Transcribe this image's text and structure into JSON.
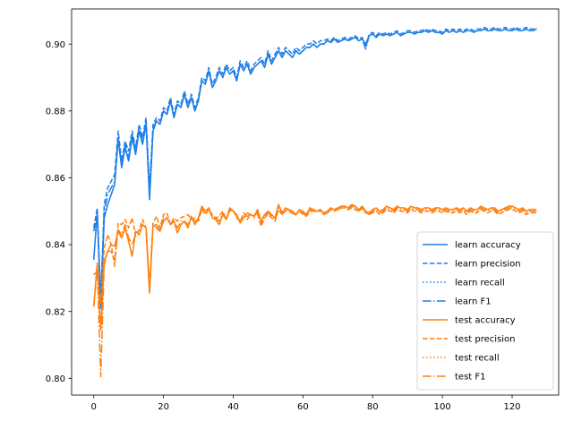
{
  "chart_data": {
    "type": "line",
    "title": "",
    "xlabel": "",
    "ylabel": "",
    "xlim": [
      -6.35,
      133.35
    ],
    "ylim": [
      0.795,
      0.9105
    ],
    "xticks": [
      0,
      20,
      40,
      60,
      80,
      100,
      120
    ],
    "yticks": [
      0.8,
      0.82,
      0.84,
      0.86,
      0.88,
      0.9
    ],
    "ytick_labels": [
      "0.80",
      "0.82",
      "0.84",
      "0.86",
      "0.88",
      "0.90"
    ],
    "grid": false,
    "legend_position": "lower-right",
    "colors": {
      "learn": "#1f7fe6",
      "test": "#ff7f0e"
    },
    "series": [
      {
        "name": "learn accuracy",
        "group": "learn",
        "style": "solid",
        "values": [
          0.8355,
          0.85,
          0.821,
          0.848,
          0.852,
          0.855,
          0.858,
          0.8715,
          0.863,
          0.869,
          0.865,
          0.872,
          0.867,
          0.874,
          0.87,
          0.876,
          0.8535,
          0.874,
          0.877,
          0.876,
          0.88,
          0.879,
          0.883,
          0.878,
          0.882,
          0.881,
          0.885,
          0.881,
          0.884,
          0.88,
          0.883,
          0.889,
          0.888,
          0.892,
          0.887,
          0.889,
          0.892,
          0.89,
          0.893,
          0.891,
          0.892,
          0.889,
          0.894,
          0.892,
          0.894,
          0.891,
          0.893,
          0.894,
          0.895,
          0.893,
          0.897,
          0.894,
          0.896,
          0.898,
          0.896,
          0.898,
          0.897,
          0.896,
          0.898,
          0.897,
          0.898,
          0.899,
          0.899,
          0.9,
          0.899,
          0.9,
          0.9,
          0.901,
          0.9005,
          0.9015,
          0.9005,
          0.901,
          0.9015,
          0.901,
          0.9015,
          0.902,
          0.901,
          0.9015,
          0.9,
          0.9025,
          0.903,
          0.902,
          0.903,
          0.9025,
          0.903,
          0.9025,
          0.903,
          0.9035,
          0.9025,
          0.903,
          0.9035,
          0.9035,
          0.903,
          0.9035,
          0.9035,
          0.904,
          0.9035,
          0.904,
          0.9035,
          0.9035,
          0.903,
          0.904,
          0.9035,
          0.904,
          0.9035,
          0.904,
          0.9035,
          0.904,
          0.904,
          0.9035,
          0.904,
          0.904,
          0.9045,
          0.904,
          0.904,
          0.9045,
          0.904,
          0.904,
          0.9045,
          0.904,
          0.904,
          0.9045,
          0.904,
          0.904,
          0.9045,
          0.904,
          0.904,
          0.9045
        ]
      },
      {
        "name": "learn precision",
        "group": "learn",
        "style": "dashed",
        "values": [
          0.845,
          0.851,
          0.824,
          0.852,
          0.857,
          0.859,
          0.861,
          0.874,
          0.865,
          0.871,
          0.868,
          0.874,
          0.869,
          0.876,
          0.872,
          0.878,
          0.857,
          0.876,
          0.878,
          0.877,
          0.881,
          0.88,
          0.884,
          0.879,
          0.883,
          0.882,
          0.886,
          0.882,
          0.885,
          0.881,
          0.884,
          0.89,
          0.889,
          0.893,
          0.888,
          0.89,
          0.893,
          0.891,
          0.894,
          0.892,
          0.893,
          0.89,
          0.895,
          0.893,
          0.895,
          0.892,
          0.894,
          0.895,
          0.896,
          0.894,
          0.898,
          0.895,
          0.897,
          0.899,
          0.897,
          0.899,
          0.898,
          0.897,
          0.899,
          0.898,
          0.899,
          0.9,
          0.9,
          0.901,
          0.9,
          0.901,
          0.901,
          0.9015,
          0.901,
          0.902,
          0.901,
          0.9015,
          0.902,
          0.9015,
          0.902,
          0.9025,
          0.9015,
          0.902,
          0.899,
          0.903,
          0.9035,
          0.9025,
          0.9035,
          0.903,
          0.9035,
          0.903,
          0.9035,
          0.904,
          0.903,
          0.9035,
          0.904,
          0.904,
          0.9035,
          0.904,
          0.904,
          0.9045,
          0.904,
          0.9045,
          0.904,
          0.904,
          0.9035,
          0.9045,
          0.904,
          0.9045,
          0.904,
          0.9045,
          0.904,
          0.9045,
          0.9045,
          0.904,
          0.9045,
          0.9045,
          0.905,
          0.9045,
          0.9045,
          0.905,
          0.9045,
          0.9045,
          0.905,
          0.9045,
          0.9045,
          0.905,
          0.9045,
          0.9045,
          0.905,
          0.9045,
          0.9045,
          0.905
        ]
      },
      {
        "name": "learn recall",
        "group": "learn",
        "style": "dotted",
        "values": [
          0.8355,
          0.85,
          0.821,
          0.848,
          0.852,
          0.855,
          0.858,
          0.8715,
          0.863,
          0.869,
          0.865,
          0.872,
          0.867,
          0.874,
          0.87,
          0.876,
          0.8535,
          0.874,
          0.877,
          0.876,
          0.88,
          0.879,
          0.883,
          0.878,
          0.882,
          0.881,
          0.885,
          0.881,
          0.884,
          0.88,
          0.883,
          0.889,
          0.888,
          0.892,
          0.887,
          0.889,
          0.892,
          0.89,
          0.893,
          0.891,
          0.892,
          0.889,
          0.894,
          0.892,
          0.894,
          0.891,
          0.893,
          0.894,
          0.895,
          0.893,
          0.897,
          0.894,
          0.896,
          0.898,
          0.896,
          0.898,
          0.897,
          0.896,
          0.898,
          0.897,
          0.898,
          0.899,
          0.899,
          0.9,
          0.899,
          0.9,
          0.9,
          0.901,
          0.9005,
          0.9015,
          0.9005,
          0.901,
          0.9015,
          0.901,
          0.9015,
          0.902,
          0.901,
          0.9015,
          0.9,
          0.9025,
          0.903,
          0.902,
          0.903,
          0.9025,
          0.903,
          0.9025,
          0.903,
          0.9035,
          0.9025,
          0.903,
          0.9035,
          0.9035,
          0.903,
          0.9035,
          0.9035,
          0.904,
          0.9035,
          0.904,
          0.9035,
          0.9035,
          0.903,
          0.904,
          0.9035,
          0.904,
          0.9035,
          0.904,
          0.9035,
          0.904,
          0.904,
          0.9035,
          0.904,
          0.904,
          0.9045,
          0.904,
          0.904,
          0.9045,
          0.904,
          0.904,
          0.9045,
          0.904,
          0.904,
          0.9045,
          0.904,
          0.904,
          0.9045,
          0.904,
          0.904,
          0.9045
        ]
      },
      {
        "name": "learn F1",
        "group": "learn",
        "style": "dashdot",
        "values": [
          0.844,
          0.849,
          0.823,
          0.85,
          0.855,
          0.857,
          0.859,
          0.872,
          0.864,
          0.87,
          0.866,
          0.873,
          0.868,
          0.875,
          0.871,
          0.877,
          0.855,
          0.875,
          0.877,
          0.876,
          0.88,
          0.879,
          0.883,
          0.878,
          0.882,
          0.881,
          0.885,
          0.881,
          0.884,
          0.88,
          0.883,
          0.889,
          0.888,
          0.892,
          0.887,
          0.889,
          0.892,
          0.89,
          0.893,
          0.891,
          0.892,
          0.889,
          0.894,
          0.892,
          0.894,
          0.891,
          0.893,
          0.894,
          0.895,
          0.893,
          0.897,
          0.894,
          0.896,
          0.898,
          0.896,
          0.898,
          0.897,
          0.896,
          0.898,
          0.897,
          0.898,
          0.899,
          0.899,
          0.9,
          0.899,
          0.9,
          0.9,
          0.901,
          0.9005,
          0.9015,
          0.9005,
          0.901,
          0.9015,
          0.901,
          0.9015,
          0.902,
          0.901,
          0.9015,
          0.8985,
          0.9025,
          0.903,
          0.902,
          0.903,
          0.9025,
          0.903,
          0.9025,
          0.903,
          0.9035,
          0.9025,
          0.903,
          0.9035,
          0.9035,
          0.903,
          0.9035,
          0.9035,
          0.904,
          0.9035,
          0.904,
          0.9035,
          0.9035,
          0.903,
          0.904,
          0.9035,
          0.904,
          0.9035,
          0.904,
          0.9035,
          0.904,
          0.904,
          0.9035,
          0.904,
          0.904,
          0.9045,
          0.904,
          0.904,
          0.9045,
          0.904,
          0.904,
          0.9045,
          0.904,
          0.904,
          0.9045,
          0.904,
          0.904,
          0.9045,
          0.904,
          0.904,
          0.9045
        ]
      },
      {
        "name": "test accuracy",
        "group": "test",
        "style": "solid",
        "values": [
          0.8215,
          0.8345,
          0.8145,
          0.835,
          0.838,
          0.84,
          0.8395,
          0.844,
          0.842,
          0.845,
          0.841,
          0.8365,
          0.844,
          0.843,
          0.846,
          0.845,
          0.8255,
          0.846,
          0.845,
          0.844,
          0.847,
          0.848,
          0.846,
          0.847,
          0.8435,
          0.846,
          0.847,
          0.845,
          0.8485,
          0.846,
          0.848,
          0.8515,
          0.85,
          0.851,
          0.848,
          0.8475,
          0.846,
          0.849,
          0.8475,
          0.851,
          0.85,
          0.849,
          0.8465,
          0.848,
          0.8495,
          0.849,
          0.8485,
          0.8505,
          0.847,
          0.849,
          0.85,
          0.849,
          0.848,
          0.852,
          0.8495,
          0.851,
          0.8505,
          0.85,
          0.849,
          0.8505,
          0.85,
          0.849,
          0.851,
          0.8505,
          0.85,
          0.8505,
          0.8495,
          0.85,
          0.851,
          0.8505,
          0.851,
          0.8515,
          0.8515,
          0.851,
          0.852,
          0.8515,
          0.8505,
          0.8515,
          0.85,
          0.8495,
          0.8505,
          0.851,
          0.85,
          0.8505,
          0.8515,
          0.851,
          0.8505,
          0.8515,
          0.851,
          0.851,
          0.8505,
          0.8515,
          0.851,
          0.851,
          0.8505,
          0.851,
          0.851,
          0.8505,
          0.851,
          0.851,
          0.8505,
          0.851,
          0.8505,
          0.8505,
          0.851,
          0.8505,
          0.851,
          0.85,
          0.851,
          0.8505,
          0.8505,
          0.8515,
          0.851,
          0.8505,
          0.851,
          0.851,
          0.85,
          0.8505,
          0.851,
          0.8515,
          0.8515,
          0.851,
          0.8505,
          0.851,
          0.85,
          0.8505,
          0.8505,
          0.8505
        ]
      },
      {
        "name": "test precision",
        "group": "test",
        "style": "dashed",
        "values": [
          0.831,
          0.832,
          0.8225,
          0.839,
          0.843,
          0.84,
          0.8335,
          0.8465,
          0.846,
          0.8475,
          0.845,
          0.848,
          0.8425,
          0.8445,
          0.8475,
          0.845,
          0.8275,
          0.8465,
          0.8485,
          0.845,
          0.849,
          0.8495,
          0.846,
          0.848,
          0.847,
          0.848,
          0.8485,
          0.849,
          0.8475,
          0.848,
          0.847,
          0.8505,
          0.849,
          0.8505,
          0.849,
          0.848,
          0.8485,
          0.85,
          0.8475,
          0.85,
          0.8505,
          0.848,
          0.847,
          0.8495,
          0.8475,
          0.849,
          0.8485,
          0.849,
          0.8455,
          0.848,
          0.849,
          0.848,
          0.847,
          0.8505,
          0.849,
          0.85,
          0.8505,
          0.849,
          0.849,
          0.85,
          0.849,
          0.8485,
          0.85,
          0.85,
          0.85,
          0.85,
          0.849,
          0.8495,
          0.8505,
          0.85,
          0.8505,
          0.851,
          0.851,
          0.8505,
          0.851,
          0.8505,
          0.85,
          0.851,
          0.8495,
          0.849,
          0.8495,
          0.85,
          0.849,
          0.8495,
          0.8505,
          0.85,
          0.8495,
          0.8505,
          0.85,
          0.85,
          0.8495,
          0.8505,
          0.85,
          0.85,
          0.8495,
          0.85,
          0.85,
          0.8495,
          0.85,
          0.85,
          0.8495,
          0.85,
          0.8495,
          0.8495,
          0.85,
          0.8495,
          0.85,
          0.849,
          0.85,
          0.8495,
          0.8495,
          0.8505,
          0.85,
          0.8495,
          0.85,
          0.85,
          0.849,
          0.8495,
          0.85,
          0.8505,
          0.8505,
          0.85,
          0.8495,
          0.85,
          0.849,
          0.8495,
          0.8495,
          0.8495
        ]
      },
      {
        "name": "test recall",
        "group": "test",
        "style": "dotted",
        "values": [
          0.8215,
          0.8345,
          0.8145,
          0.835,
          0.838,
          0.84,
          0.8395,
          0.844,
          0.842,
          0.845,
          0.841,
          0.8365,
          0.844,
          0.843,
          0.846,
          0.845,
          0.8255,
          0.846,
          0.845,
          0.844,
          0.847,
          0.848,
          0.846,
          0.847,
          0.8435,
          0.846,
          0.847,
          0.845,
          0.8485,
          0.846,
          0.848,
          0.8515,
          0.85,
          0.851,
          0.848,
          0.8475,
          0.846,
          0.849,
          0.8475,
          0.851,
          0.85,
          0.849,
          0.8465,
          0.848,
          0.8495,
          0.849,
          0.8485,
          0.8505,
          0.847,
          0.849,
          0.85,
          0.849,
          0.848,
          0.852,
          0.8495,
          0.851,
          0.8505,
          0.85,
          0.849,
          0.8505,
          0.85,
          0.849,
          0.851,
          0.8505,
          0.85,
          0.8505,
          0.8495,
          0.85,
          0.851,
          0.8505,
          0.851,
          0.8515,
          0.8515,
          0.851,
          0.852,
          0.8515,
          0.8505,
          0.8515,
          0.85,
          0.8495,
          0.8505,
          0.851,
          0.85,
          0.8505,
          0.8515,
          0.851,
          0.8505,
          0.8515,
          0.851,
          0.851,
          0.8505,
          0.8515,
          0.851,
          0.851,
          0.8505,
          0.851,
          0.851,
          0.8505,
          0.851,
          0.851,
          0.8505,
          0.851,
          0.8505,
          0.8505,
          0.851,
          0.8505,
          0.851,
          0.85,
          0.851,
          0.8505,
          0.8505,
          0.8515,
          0.851,
          0.8505,
          0.851,
          0.851,
          0.85,
          0.8505,
          0.851,
          0.8515,
          0.8515,
          0.851,
          0.8505,
          0.851,
          0.85,
          0.8505,
          0.8505,
          0.8505
        ]
      },
      {
        "name": "test F1",
        "group": "test",
        "style": "dashdot",
        "values": [
          0.8215,
          0.833,
          0.8005,
          0.834,
          0.838,
          0.838,
          0.8355,
          0.8445,
          0.843,
          0.846,
          0.842,
          0.84,
          0.843,
          0.843,
          0.846,
          0.845,
          0.8265,
          0.846,
          0.846,
          0.844,
          0.848,
          0.848,
          0.846,
          0.847,
          0.845,
          0.847,
          0.847,
          0.846,
          0.848,
          0.847,
          0.8475,
          0.851,
          0.8495,
          0.851,
          0.8485,
          0.848,
          0.847,
          0.8495,
          0.8475,
          0.8505,
          0.85,
          0.8485,
          0.847,
          0.8485,
          0.8485,
          0.849,
          0.848,
          0.85,
          0.846,
          0.8485,
          0.8495,
          0.8485,
          0.8475,
          0.851,
          0.849,
          0.8505,
          0.85,
          0.8495,
          0.849,
          0.85,
          0.8495,
          0.8485,
          0.8505,
          0.85,
          0.85,
          0.85,
          0.849,
          0.8495,
          0.8505,
          0.85,
          0.8505,
          0.851,
          0.851,
          0.8505,
          0.8515,
          0.851,
          0.85,
          0.851,
          0.8495,
          0.849,
          0.85,
          0.8505,
          0.8495,
          0.85,
          0.851,
          0.8505,
          0.85,
          0.851,
          0.8505,
          0.8505,
          0.85,
          0.851,
          0.8505,
          0.8505,
          0.85,
          0.8505,
          0.8505,
          0.85,
          0.8505,
          0.8505,
          0.85,
          0.8505,
          0.85,
          0.85,
          0.8505,
          0.85,
          0.8505,
          0.8495,
          0.8505,
          0.85,
          0.85,
          0.851,
          0.8505,
          0.85,
          0.8505,
          0.8505,
          0.8495,
          0.85,
          0.8505,
          0.851,
          0.851,
          0.8505,
          0.85,
          0.8505,
          0.8495,
          0.85,
          0.85,
          0.85
        ]
      }
    ]
  }
}
